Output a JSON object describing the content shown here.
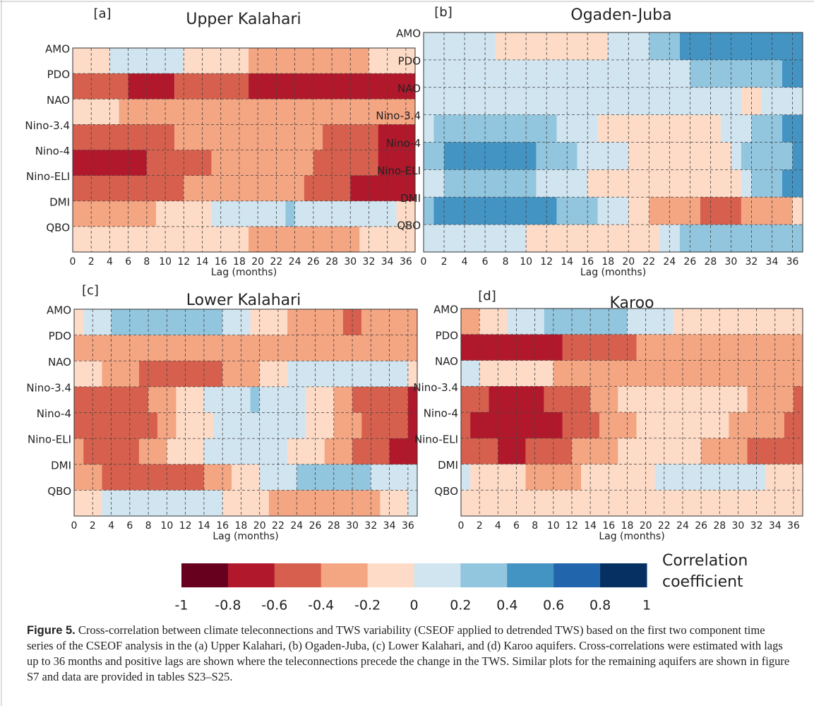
{
  "chart_data": [
    {
      "type": "heatmap",
      "panel_label": "[a]",
      "title": "Upper Kalahari",
      "xlabel": "Lag (months)",
      "xlim": [
        0,
        37
      ],
      "xticks": [
        0,
        2,
        4,
        6,
        8,
        10,
        12,
        14,
        16,
        18,
        20,
        22,
        24,
        26,
        28,
        30,
        32,
        34,
        36
      ],
      "rows": [
        {
          "name": "AMO",
          "segments": [
            [
              0,
              4,
              -0.1
            ],
            [
              4,
              12,
              0.1
            ],
            [
              12,
              19,
              -0.1
            ],
            [
              19,
              32,
              -0.3
            ],
            [
              32,
              37,
              -0.1
            ]
          ]
        },
        {
          "name": "PDO",
          "segments": [
            [
              0,
              6,
              -0.5
            ],
            [
              6,
              11,
              -0.7
            ],
            [
              11,
              19,
              -0.5
            ],
            [
              19,
              37,
              -0.7
            ]
          ]
        },
        {
          "name": "NAO",
          "segments": [
            [
              0,
              5,
              -0.1
            ],
            [
              5,
              37,
              -0.3
            ]
          ]
        },
        {
          "name": "Nino-3.4",
          "segments": [
            [
              0,
              11,
              -0.5
            ],
            [
              11,
              27,
              -0.3
            ],
            [
              27,
              33,
              -0.5
            ],
            [
              33,
              37,
              -0.7
            ]
          ]
        },
        {
          "name": "Nino-4",
          "segments": [
            [
              0,
              8,
              -0.7
            ],
            [
              8,
              15,
              -0.5
            ],
            [
              15,
              26,
              -0.3
            ],
            [
              26,
              33,
              -0.5
            ],
            [
              33,
              37,
              -0.7
            ]
          ]
        },
        {
          "name": "Nino-ELI",
          "segments": [
            [
              0,
              12,
              -0.5
            ],
            [
              12,
              25,
              -0.3
            ],
            [
              25,
              30,
              -0.5
            ],
            [
              30,
              37,
              -0.7
            ]
          ]
        },
        {
          "name": "DMI",
          "segments": [
            [
              0,
              9,
              -0.3
            ],
            [
              9,
              15,
              -0.1
            ],
            [
              15,
              23,
              0.1
            ],
            [
              23,
              24,
              0.3
            ],
            [
              24,
              35,
              0.1
            ],
            [
              35,
              37,
              -0.1
            ]
          ]
        },
        {
          "name": "QBO",
          "segments": [
            [
              0,
              19,
              -0.1
            ],
            [
              19,
              31,
              -0.3
            ],
            [
              31,
              37,
              -0.1
            ]
          ]
        }
      ]
    },
    {
      "type": "heatmap",
      "panel_label": "[b]",
      "title": "Ogaden-Juba",
      "xlabel": "Lag (months)",
      "xlim": [
        0,
        37
      ],
      "xticks": [
        0,
        2,
        4,
        6,
        8,
        10,
        12,
        14,
        16,
        18,
        20,
        22,
        24,
        26,
        28,
        30,
        32,
        34,
        36
      ],
      "rows": [
        {
          "name": "AMO",
          "segments": [
            [
              0,
              7,
              0.1
            ],
            [
              7,
              18,
              -0.1
            ],
            [
              18,
              22,
              0.1
            ],
            [
              22,
              25,
              0.3
            ],
            [
              25,
              37,
              0.5
            ]
          ]
        },
        {
          "name": "PDO",
          "segments": [
            [
              0,
              26,
              0.1
            ],
            [
              26,
              35,
              0.3
            ],
            [
              35,
              37,
              0.5
            ]
          ]
        },
        {
          "name": "NAO",
          "segments": [
            [
              0,
              31,
              0.1
            ],
            [
              31,
              33,
              -0.1
            ],
            [
              33,
              37,
              0.1
            ]
          ]
        },
        {
          "name": "Nino-3.4",
          "segments": [
            [
              0,
              1,
              0.1
            ],
            [
              1,
              13,
              0.3
            ],
            [
              13,
              17,
              0.1
            ],
            [
              17,
              29,
              -0.1
            ],
            [
              29,
              32,
              0.1
            ],
            [
              32,
              35,
              0.3
            ],
            [
              35,
              37,
              0.5
            ]
          ]
        },
        {
          "name": "Nino-4",
          "segments": [
            [
              0,
              2,
              0.3
            ],
            [
              2,
              11,
              0.5
            ],
            [
              11,
              15,
              0.3
            ],
            [
              15,
              20,
              0.1
            ],
            [
              20,
              30,
              -0.1
            ],
            [
              30,
              31,
              0.1
            ],
            [
              31,
              36,
              0.3
            ],
            [
              36,
              37,
              0.5
            ]
          ]
        },
        {
          "name": "Nino-ELI",
          "segments": [
            [
              0,
              2,
              0.1
            ],
            [
              2,
              11,
              0.3
            ],
            [
              11,
              16,
              0.1
            ],
            [
              16,
              31,
              -0.1
            ],
            [
              31,
              32,
              0.1
            ],
            [
              32,
              35,
              0.3
            ],
            [
              35,
              37,
              0.5
            ]
          ]
        },
        {
          "name": "DMI",
          "segments": [
            [
              0,
              1,
              0.3
            ],
            [
              1,
              13,
              0.5
            ],
            [
              13,
              17,
              0.3
            ],
            [
              17,
              20,
              0.1
            ],
            [
              20,
              22,
              -0.1
            ],
            [
              22,
              27,
              -0.3
            ],
            [
              27,
              31,
              -0.5
            ],
            [
              31,
              36,
              -0.3
            ],
            [
              36,
              37,
              -0.1
            ]
          ]
        },
        {
          "name": "QBO",
          "segments": [
            [
              0,
              10,
              0.1
            ],
            [
              10,
              23,
              -0.1
            ],
            [
              23,
              25,
              0.1
            ],
            [
              25,
              37,
              0.3
            ]
          ]
        }
      ]
    },
    {
      "type": "heatmap",
      "panel_label": "[c]",
      "title": "Lower Kalahari",
      "xlabel": "Lag (months)",
      "xlim": [
        0,
        37
      ],
      "xticks": [
        0,
        2,
        4,
        6,
        8,
        10,
        12,
        14,
        16,
        18,
        20,
        22,
        24,
        26,
        28,
        30,
        32,
        34,
        36
      ],
      "rows": [
        {
          "name": "AMO",
          "segments": [
            [
              0,
              1,
              -0.1
            ],
            [
              1,
              4,
              0.1
            ],
            [
              4,
              16,
              0.3
            ],
            [
              16,
              19,
              0.1
            ],
            [
              19,
              23,
              -0.1
            ],
            [
              23,
              29,
              -0.3
            ],
            [
              29,
              31,
              -0.5
            ],
            [
              31,
              37,
              -0.3
            ]
          ]
        },
        {
          "name": "PDO",
          "segments": [
            [
              0,
              37,
              -0.3
            ]
          ]
        },
        {
          "name": "NAO",
          "segments": [
            [
              0,
              3,
              -0.1
            ],
            [
              3,
              7,
              -0.3
            ],
            [
              7,
              16,
              -0.5
            ],
            [
              16,
              20,
              -0.3
            ],
            [
              20,
              23,
              -0.1
            ],
            [
              23,
              36,
              0.1
            ],
            [
              36,
              37,
              -0.1
            ]
          ]
        },
        {
          "name": "Nino-3.4",
          "segments": [
            [
              0,
              8,
              -0.5
            ],
            [
              8,
              11,
              -0.3
            ],
            [
              11,
              14,
              -0.1
            ],
            [
              14,
              19,
              0.1
            ],
            [
              19,
              20,
              0.3
            ],
            [
              20,
              25,
              0.1
            ],
            [
              25,
              28,
              -0.1
            ],
            [
              28,
              30,
              -0.3
            ],
            [
              30,
              36,
              -0.5
            ],
            [
              36,
              37,
              -0.7
            ]
          ]
        },
        {
          "name": "Nino-4",
          "segments": [
            [
              0,
              9,
              -0.5
            ],
            [
              9,
              11,
              -0.3
            ],
            [
              11,
              15,
              -0.1
            ],
            [
              15,
              25,
              0.1
            ],
            [
              25,
              28,
              -0.1
            ],
            [
              28,
              31,
              -0.3
            ],
            [
              31,
              36,
              -0.5
            ],
            [
              36,
              37,
              -0.7
            ]
          ]
        },
        {
          "name": "Nino-ELI",
          "segments": [
            [
              0,
              1,
              -0.3
            ],
            [
              1,
              7,
              -0.5
            ],
            [
              7,
              10,
              -0.3
            ],
            [
              10,
              14,
              -0.1
            ],
            [
              14,
              23,
              0.1
            ],
            [
              23,
              27,
              -0.1
            ],
            [
              27,
              30,
              -0.3
            ],
            [
              30,
              34,
              -0.5
            ],
            [
              34,
              37,
              -0.7
            ]
          ]
        },
        {
          "name": "DMI",
          "segments": [
            [
              0,
              3,
              -0.3
            ],
            [
              3,
              14,
              -0.5
            ],
            [
              14,
              17,
              -0.3
            ],
            [
              17,
              20,
              -0.1
            ],
            [
              20,
              24,
              0.1
            ],
            [
              24,
              32,
              0.3
            ],
            [
              32,
              37,
              0.1
            ]
          ]
        },
        {
          "name": "QBO",
          "segments": [
            [
              0,
              3,
              -0.1
            ],
            [
              3,
              16,
              0.1
            ],
            [
              16,
              21,
              -0.1
            ],
            [
              21,
              33,
              -0.3
            ],
            [
              33,
              36,
              -0.1
            ],
            [
              36,
              37,
              0.1
            ]
          ]
        }
      ]
    },
    {
      "type": "heatmap",
      "panel_label": "[d]",
      "title": "Karoo",
      "xlabel": "Lag (months)",
      "xlim": [
        0,
        37
      ],
      "xticks": [
        0,
        2,
        4,
        6,
        8,
        10,
        12,
        14,
        16,
        18,
        20,
        22,
        24,
        26,
        28,
        30,
        32,
        34,
        36
      ],
      "rows": [
        {
          "name": "AMO",
          "segments": [
            [
              0,
              2,
              -0.3
            ],
            [
              2,
              5,
              -0.1
            ],
            [
              5,
              9,
              0.1
            ],
            [
              9,
              18,
              0.3
            ],
            [
              18,
              23,
              0.1
            ],
            [
              23,
              37,
              -0.1
            ]
          ]
        },
        {
          "name": "PDO",
          "segments": [
            [
              0,
              11,
              -0.7
            ],
            [
              11,
              19,
              -0.5
            ],
            [
              19,
              37,
              -0.3
            ]
          ]
        },
        {
          "name": "NAO",
          "segments": [
            [
              0,
              2,
              0.1
            ],
            [
              2,
              10,
              -0.1
            ],
            [
              10,
              37,
              -0.3
            ]
          ]
        },
        {
          "name": "Nino-3.4",
          "segments": [
            [
              0,
              3,
              -0.5
            ],
            [
              3,
              9,
              -0.7
            ],
            [
              9,
              14,
              -0.5
            ],
            [
              14,
              17,
              -0.3
            ],
            [
              17,
              31,
              -0.1
            ],
            [
              31,
              36,
              -0.3
            ],
            [
              36,
              37,
              -0.5
            ]
          ]
        },
        {
          "name": "Nino-4",
          "segments": [
            [
              0,
              1,
              -0.5
            ],
            [
              1,
              11,
              -0.7
            ],
            [
              11,
              15,
              -0.5
            ],
            [
              15,
              19,
              -0.3
            ],
            [
              19,
              29,
              -0.1
            ],
            [
              29,
              35,
              -0.3
            ],
            [
              35,
              37,
              -0.5
            ]
          ]
        },
        {
          "name": "Nino-ELI",
          "segments": [
            [
              0,
              4,
              -0.5
            ],
            [
              4,
              7,
              -0.7
            ],
            [
              7,
              12,
              -0.5
            ],
            [
              12,
              17,
              -0.3
            ],
            [
              17,
              26,
              -0.1
            ],
            [
              26,
              31,
              -0.3
            ],
            [
              31,
              37,
              -0.5
            ]
          ]
        },
        {
          "name": "DMI",
          "segments": [
            [
              0,
              1,
              0.1
            ],
            [
              1,
              7,
              -0.1
            ],
            [
              7,
              13,
              -0.3
            ],
            [
              13,
              21,
              -0.1
            ],
            [
              21,
              33,
              0.1
            ],
            [
              33,
              37,
              -0.1
            ]
          ]
        },
        {
          "name": "QBO",
          "segments": [
            [
              0,
              37,
              -0.1
            ]
          ]
        }
      ]
    }
  ],
  "colorbar": {
    "label": "Correlation coefficient",
    "ticks": [
      -1,
      -0.8,
      -0.6,
      -0.4,
      -0.2,
      0,
      0.2,
      0.4,
      0.6,
      0.8,
      1
    ],
    "colors": [
      "#67001f",
      "#b2182b",
      "#d6604d",
      "#f4a582",
      "#fddbc7",
      "#d1e5f0",
      "#92c5de",
      "#4393c3",
      "#2166ac",
      "#053061"
    ]
  },
  "caption": {
    "label": "Figure 5.",
    "text": "Cross-correlation between climate teleconnections and TWS variability (CSEOF applied to detrended TWS) based on the first two component time series of the CSEOF analysis in the (a) Upper Kalahari, (b) Ogaden-Juba, (c) Lower Kalahari, and (d) Karoo aquifers. Cross-correlations were estimated with lags up to 36 months and positive lags are shown where the teleconnections precede the change in the TWS. Similar plots for the remaining aquifers are shown in figure S7 and data are provided in tables S23–S25."
  }
}
